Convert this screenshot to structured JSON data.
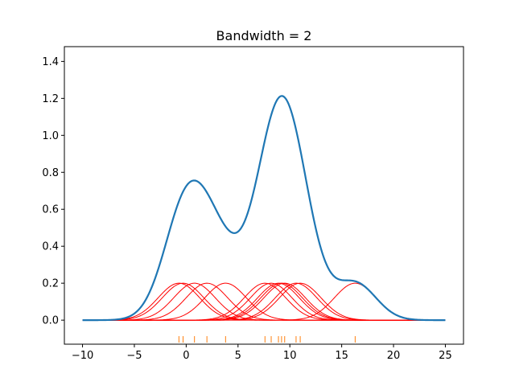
{
  "chart_data": {
    "type": "line",
    "title": "Bandwidth = 2",
    "xlabel": "",
    "ylabel": "",
    "xlim": [
      -11.75,
      26.75
    ],
    "ylim": [
      -0.13,
      1.48
    ],
    "xticks": [
      -10,
      -5,
      0,
      5,
      10,
      15,
      20,
      25
    ],
    "xtick_labels": [
      "−10",
      "−5",
      "0",
      "5",
      "10",
      "15",
      "20",
      "25"
    ],
    "yticks": [
      0.0,
      0.2,
      0.4,
      0.6,
      0.8,
      1.0,
      1.2,
      1.4
    ],
    "ytick_labels": [
      "0.0",
      "0.2",
      "0.4",
      "0.6",
      "0.8",
      "1.0",
      "1.2",
      "1.4"
    ],
    "grid": false,
    "bandwidth": 2,
    "kernel_peak": 0.2,
    "sample_points": [
      -0.7,
      -0.3,
      0.8,
      2.0,
      3.8,
      7.6,
      8.2,
      8.9,
      9.2,
      9.5,
      10.6,
      11.0,
      16.3
    ],
    "density_x_range": [
      -10,
      25
    ],
    "colors": {
      "density": "#1f77b4",
      "kernels": "#ff0000",
      "rug": "#ff7f0e",
      "axes": "#000000"
    }
  }
}
